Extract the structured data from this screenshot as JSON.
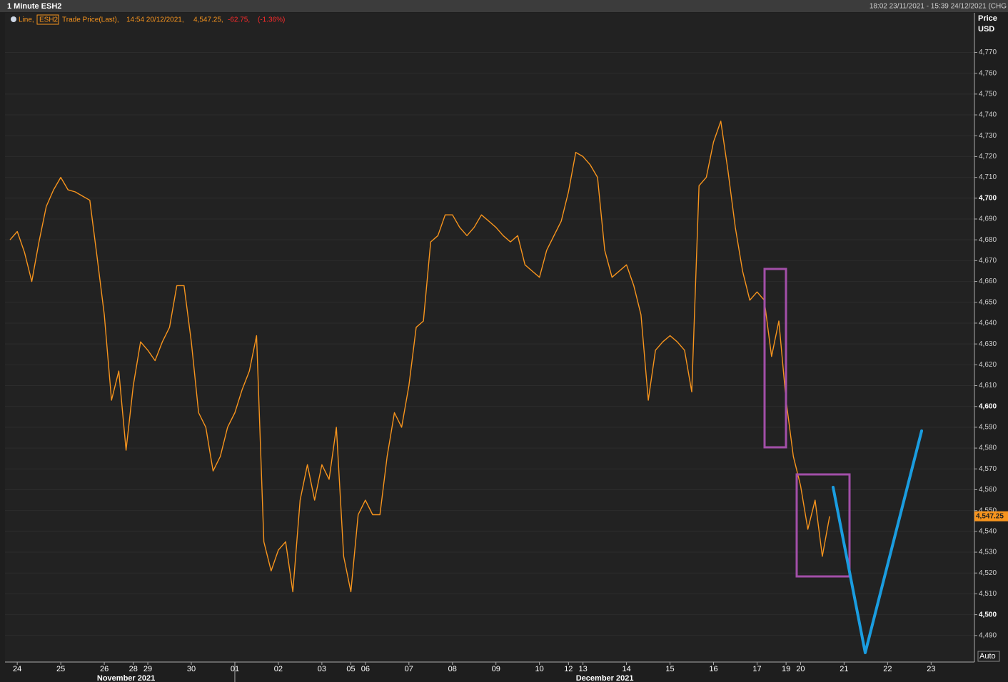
{
  "chart_data": {
    "type": "line",
    "title": "1 Minute ESH2",
    "range_text": "18:02 23/11/2021 - 15:39 24/12/2021 (CHG",
    "legend": {
      "kind": "Line,",
      "field": "Trade Price(Last),",
      "time": "14:54 20/12/2021,",
      "last": "4,547.25,",
      "change": "-62.75,",
      "change_pct": "(-1.36%)"
    },
    "y_axis_label": [
      "Price",
      "USD"
    ],
    "auto_label": "Auto",
    "last_label": "4,547.25",
    "months": [
      "November 2021",
      "December 2021"
    ],
    "categories": [
      null,
      "24",
      null,
      null,
      null,
      null,
      null,
      "25",
      null,
      null,
      null,
      null,
      null,
      "26",
      null,
      null,
      null,
      "28",
      null,
      "29",
      null,
      null,
      null,
      null,
      null,
      "30",
      null,
      null,
      null,
      null,
      null,
      "01",
      null,
      null,
      null,
      null,
      null,
      "02",
      null,
      null,
      null,
      null,
      null,
      "03",
      null,
      null,
      null,
      "05",
      null,
      "06",
      null,
      null,
      null,
      null,
      null,
      "07",
      null,
      null,
      null,
      null,
      null,
      "08",
      null,
      null,
      null,
      null,
      null,
      "09",
      null,
      null,
      null,
      null,
      null,
      "10",
      null,
      null,
      null,
      "12",
      null,
      "13",
      null,
      null,
      null,
      null,
      null,
      "14",
      null,
      null,
      null,
      null,
      null,
      "15",
      null,
      null,
      null,
      null,
      null,
      "16",
      null,
      null,
      null,
      null,
      null,
      "17",
      null,
      null,
      null,
      "19",
      null,
      "20",
      null,
      null,
      null,
      null,
      null,
      "21",
      null,
      null,
      null,
      null,
      null,
      "22",
      null,
      null,
      null,
      null,
      null,
      "23",
      null,
      null,
      null,
      null,
      null,
      null
    ],
    "series": [
      {
        "name": "ESH2",
        "color": "#f7941d",
        "values": [
          4680,
          4684,
          4674,
          4660,
          4679,
          4696,
          4704,
          4710,
          4704,
          4703,
          4701,
          4699,
          4672,
          4644,
          4603,
          4617,
          4579,
          4610,
          4631,
          4627,
          4622,
          4631,
          4638,
          4658,
          4658,
          4631,
          4597,
          4590,
          4569,
          4576,
          4590,
          4597,
          4608,
          4617,
          4634,
          4535,
          4521,
          4531,
          4535,
          4511,
          4555,
          4572,
          4555,
          4572,
          4565,
          4590,
          4528,
          4511,
          4548,
          4555,
          4548,
          4548,
          4576,
          4597,
          4590,
          4610,
          4638,
          4641,
          4679,
          4682,
          4692,
          4692,
          4686,
          4682,
          4686,
          4692,
          4689,
          4686,
          4682,
          4679,
          4682,
          4668,
          4665,
          4662,
          4675,
          4682,
          4689,
          4703,
          4722,
          4720,
          4716,
          4710,
          4675,
          4662,
          4665,
          4668,
          4658,
          4644,
          4603,
          4627,
          4631,
          4634,
          4631,
          4627,
          4607,
          4706,
          4710,
          4727,
          4737,
          4713,
          4686,
          4665,
          4651,
          4655,
          4651,
          4624,
          4641,
          4603,
          4576,
          4562,
          4541,
          4555,
          4528,
          4547.25,
          null,
          null,
          null,
          null,
          null,
          null,
          null,
          null,
          null,
          null,
          null,
          null,
          null,
          null,
          null,
          null,
          null,
          null,
          null,
          null
        ]
      }
    ],
    "ylim": [
      4480,
      4789
    ],
    "yticks": [
      {
        "value": 4490,
        "label": "4,490"
      },
      {
        "value": 4500,
        "label": "4,500"
      },
      {
        "value": 4510,
        "label": "4,510"
      },
      {
        "value": 4520,
        "label": "4,520"
      },
      {
        "value": 4530,
        "label": "4,530"
      },
      {
        "value": 4540,
        "label": "4,540"
      },
      {
        "value": 4550,
        "label": "4,550"
      },
      {
        "value": 4560,
        "label": "4,560"
      },
      {
        "value": 4570,
        "label": "4,570"
      },
      {
        "value": 4580,
        "label": "4,580"
      },
      {
        "value": 4590,
        "label": "4,590"
      },
      {
        "value": 4600,
        "label": "4,600"
      },
      {
        "value": 4610,
        "label": "4,610"
      },
      {
        "value": 4620,
        "label": "4,620"
      },
      {
        "value": 4630,
        "label": "4,630"
      },
      {
        "value": 4640,
        "label": "4,640"
      },
      {
        "value": 4650,
        "label": "4,650"
      },
      {
        "value": 4660,
        "label": "4,660"
      },
      {
        "value": 4670,
        "label": "4,670"
      },
      {
        "value": 4680,
        "label": "4,680"
      },
      {
        "value": 4690,
        "label": "4,690"
      },
      {
        "value": 4700,
        "label": "4,700"
      },
      {
        "value": 4710,
        "label": "4,710"
      },
      {
        "value": 4720,
        "label": "4,720"
      },
      {
        "value": 4730,
        "label": "4,730"
      },
      {
        "value": 4740,
        "label": "4,740"
      },
      {
        "value": 4750,
        "label": "4,750"
      },
      {
        "value": 4760,
        "label": "4,760"
      },
      {
        "value": 4770,
        "label": "4,770"
      }
    ],
    "grid": true
  }
}
